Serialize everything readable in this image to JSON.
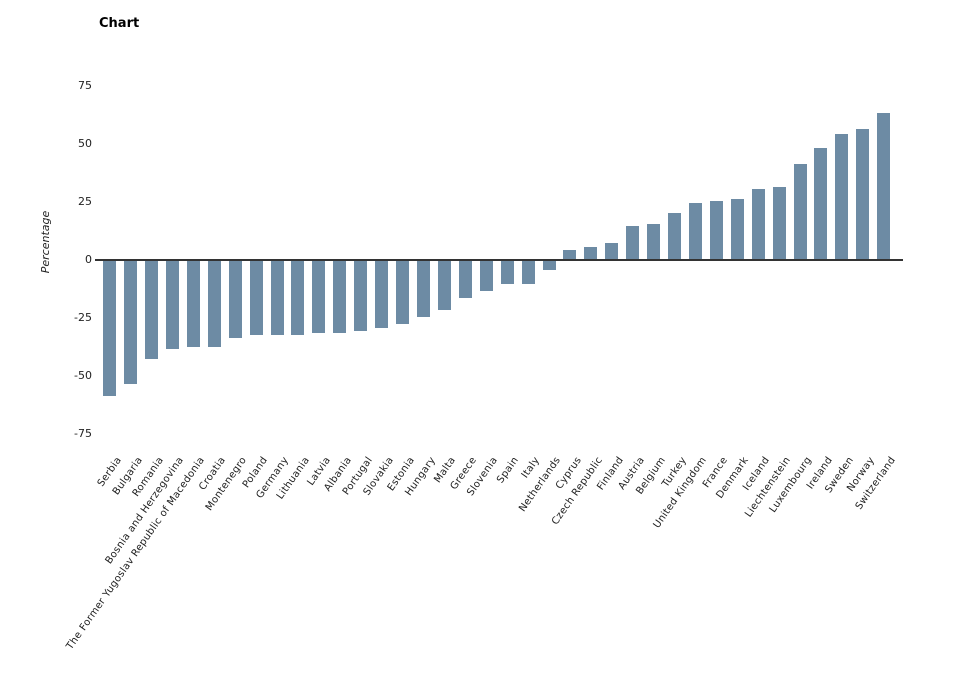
{
  "chart_data": {
    "type": "bar",
    "title": "Chart",
    "xlabel": "",
    "ylabel": "Percentage",
    "ylim": [
      -75,
      75
    ],
    "yticks": [
      75,
      50,
      25,
      0,
      -25,
      -50,
      -75
    ],
    "grid": false,
    "legend": "none",
    "bar_color": "#6d8ba4",
    "axis_line_color": "#333333",
    "categories": [
      "Serbia",
      "Bulgaria",
      "Romania",
      "Bosnia and Herzegovina",
      "The Former Yugoslav Republic of Macedonia",
      "Croatia",
      "Montenegro",
      "Poland",
      "Germany",
      "Lithuania",
      "Latvia",
      "Albania",
      "Portugal",
      "Slovakia",
      "Estonia",
      "Hungary",
      "Malta",
      "Greece",
      "Slovenia",
      "Spain",
      "Italy",
      "Netherlands",
      "Cyprus",
      "Czech Republic",
      "Finland",
      "Austria",
      "Belgium",
      "Turkey",
      "United Kingdom",
      "France",
      "Denmark",
      "Iceland",
      "Liechtenstein",
      "Luxembourg",
      "Ireland",
      "Sweden",
      "Norway",
      "Switzerland"
    ],
    "values": [
      -58,
      -53,
      -42,
      -38,
      -37,
      -37,
      -33,
      -32,
      -32,
      -32,
      -31,
      -31,
      -30,
      -29,
      -27,
      -24,
      -21,
      -16,
      -13,
      -10,
      -10,
      -4,
      4,
      5,
      7,
      14,
      15,
      20,
      24,
      25,
      26,
      30,
      31,
      41,
      48,
      54,
      56,
      63
    ]
  }
}
